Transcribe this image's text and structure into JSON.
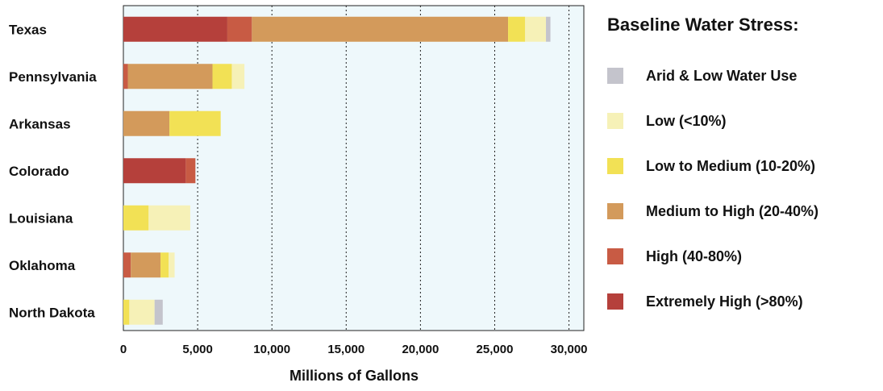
{
  "chart_data": {
    "type": "bar",
    "orientation": "horizontal",
    "stacked": true,
    "categories": [
      "Texas",
      "Pennsylvania",
      "Arkansas",
      "Colorado",
      "Louisiana",
      "Oklahoma",
      "North Dakota"
    ],
    "series": [
      {
        "name": "Extremely High (>80%)",
        "color": "#b5403b",
        "values": [
          7000,
          0,
          0,
          4200,
          0,
          0,
          0
        ]
      },
      {
        "name": "High (40-80%)",
        "color": "#c85b44",
        "values": [
          1650,
          300,
          0,
          650,
          0,
          500,
          0
        ]
      },
      {
        "name": "Medium to High (20-40%)",
        "color": "#d39a5b",
        "values": [
          17250,
          5700,
          3100,
          0,
          0,
          2000,
          0
        ]
      },
      {
        "name": "Low to Medium (10-20%)",
        "color": "#f2e155",
        "values": [
          1150,
          1300,
          3450,
          0,
          1700,
          550,
          400
        ]
      },
      {
        "name": "Low (<10%)",
        "color": "#f6f1b7",
        "values": [
          1400,
          850,
          0,
          0,
          2800,
          400,
          1700
        ]
      },
      {
        "name": "Arid & Low Water Use",
        "color": "#c4c4cc",
        "values": [
          300,
          0,
          0,
          0,
          0,
          0,
          550
        ]
      }
    ],
    "xlabel": "Millions of Gallons",
    "ylabel": "",
    "xlim": [
      0,
      31000
    ],
    "xticks": [
      0,
      5000,
      10000,
      15000,
      20000,
      25000,
      30000
    ],
    "xtick_labels": [
      "0",
      "5,000",
      "10,000",
      "15,000",
      "20,000",
      "25,000",
      "30,000"
    ],
    "grid": "vertical dotted",
    "legend_position": "right",
    "legend_title": "Baseline Water Stress:",
    "legend_order": [
      "Arid & Low Water Use",
      "Low (<10%)",
      "Low to Medium (10-20%)",
      "Medium to High (20-40%)",
      "High (40-80%)",
      "Extremely High (>80%)"
    ]
  },
  "colors": {
    "plot_background": "#eef8fb",
    "gridline": "#222222",
    "frame": "#222222"
  }
}
